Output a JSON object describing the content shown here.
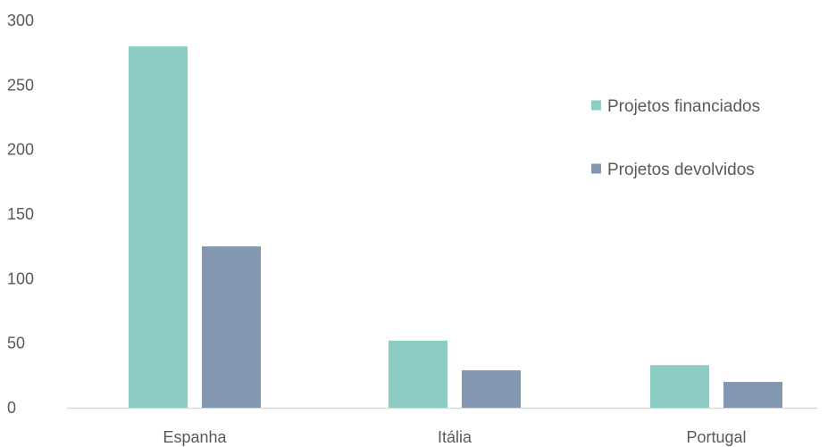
{
  "chart_data": {
    "type": "bar",
    "categories": [
      "Espanha",
      "Itália",
      "Portugal"
    ],
    "series": [
      {
        "name": "Projetos financiados",
        "values": [
          280,
          52,
          33
        ],
        "color": "#8ecdc6"
      },
      {
        "name": "Projetos devolvidos",
        "values": [
          125,
          29,
          20
        ],
        "color": "#8497b0"
      }
    ],
    "yticks": [
      0,
      50,
      100,
      150,
      200,
      250,
      300
    ],
    "ylim": [
      0,
      300
    ],
    "grid": false,
    "legend_position": "right",
    "axis_line_color": "#d9d9d9",
    "tick_label_color": "#595959"
  }
}
